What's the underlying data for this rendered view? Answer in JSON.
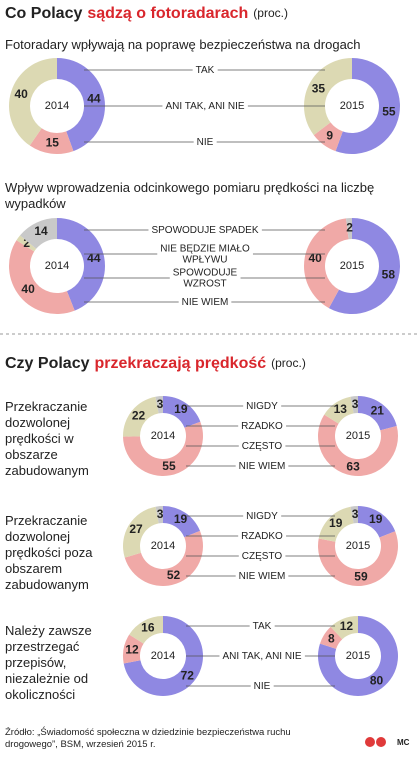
{
  "sections": [
    {
      "title": "Co Polacy",
      "title_highlight": "sądzą o fotoradarach",
      "unit": "(proc.)",
      "charts": [
        {
          "type": "donut",
          "question": "Fotoradary wpływają na poprawę bezpieczeństwa na drogach",
          "categories": [
            "TAK",
            "ANI TAK, ANI NIE",
            "NIE"
          ],
          "colors": [
            "#8f88e2",
            "#f0a9a7",
            "#dcd9b3"
          ],
          "series": [
            {
              "name": "2014",
              "values": [
                44,
                15,
                40
              ]
            },
            {
              "name": "2015",
              "values": [
                55,
                9,
                35
              ]
            }
          ]
        },
        {
          "type": "donut",
          "question": "Wpływ wprowadzenia odcinkowego pomiaru prędkości na liczbę wypadków",
          "categories": [
            "SPOWODUJE SPADEK",
            "NIE BĘDZIE MIAŁO WPŁYWU",
            "SPOWODUJE WZROST",
            "NIE WIEM"
          ],
          "colors": [
            "#8f88e2",
            "#f0a9a7",
            "#dcd9b3",
            "#c9c9c9"
          ],
          "series": [
            {
              "name": "2014",
              "values": [
                44,
                40,
                2,
                14
              ]
            },
            {
              "name": "2015",
              "values": [
                58,
                40,
                null,
                2
              ]
            }
          ]
        }
      ]
    },
    {
      "title": "Czy Polacy",
      "title_highlight": "przekraczają prędkość",
      "unit": "(proc.)",
      "charts": [
        {
          "type": "donut",
          "question": "Przekraczanie dozwolonej prędkości w obszarze zabudowanym",
          "categories": [
            "NIGDY",
            "RZADKO",
            "CZĘSTO",
            "NIE WIEM"
          ],
          "colors": [
            "#8f88e2",
            "#f0a9a7",
            "#dcd9b3",
            "#c9c9c9"
          ],
          "series": [
            {
              "name": "2014",
              "values": [
                19,
                55,
                22,
                3
              ]
            },
            {
              "name": "2015",
              "values": [
                21,
                63,
                13,
                3
              ]
            }
          ]
        },
        {
          "type": "donut",
          "question": "Przekraczanie dozwolonej prędkości poza obszarem zabudowanym",
          "categories": [
            "NIGDY",
            "RZADKO",
            "CZĘSTO",
            "NIE WIEM"
          ],
          "colors": [
            "#8f88e2",
            "#f0a9a7",
            "#dcd9b3",
            "#c9c9c9"
          ],
          "series": [
            {
              "name": "2014",
              "values": [
                19,
                52,
                27,
                3
              ]
            },
            {
              "name": "2015",
              "values": [
                19,
                59,
                19,
                3
              ]
            }
          ]
        },
        {
          "type": "donut",
          "question": "Należy zawsze przestrzegać przepisów, niezależnie od okoliczności",
          "categories": [
            "TAK",
            "ANI TAK, ANI NIE",
            "NIE"
          ],
          "colors": [
            "#8f88e2",
            "#f0a9a7",
            "#dcd9b3"
          ],
          "series": [
            {
              "name": "2014",
              "values": [
                72,
                12,
                16
              ]
            },
            {
              "name": "2015",
              "values": [
                80,
                8,
                12
              ]
            }
          ]
        }
      ]
    }
  ],
  "footer": {
    "source": "Źródło: „Świadomość społeczna w dziedzinie bezpieczeństwa ruchu drogowego”, BSM, wrzesień 2015 r.",
    "author": "MC"
  }
}
